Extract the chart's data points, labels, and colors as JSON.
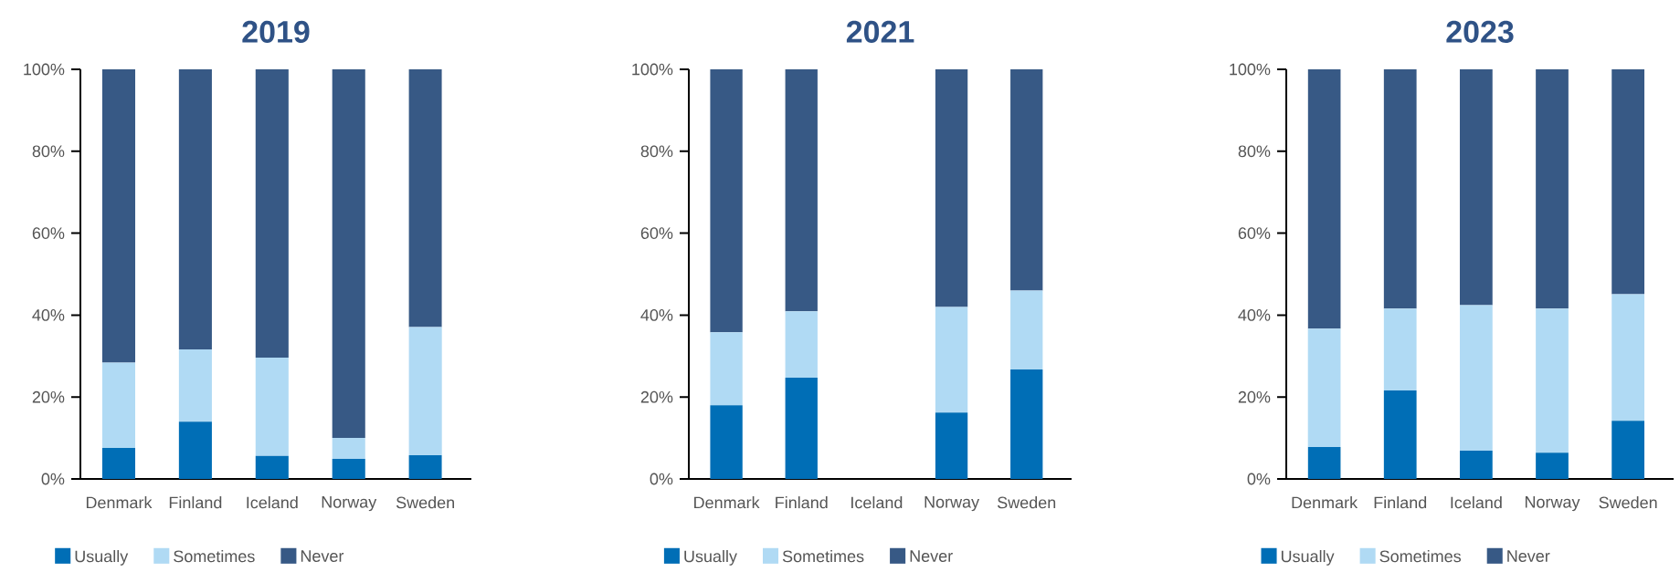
{
  "chart_data": [
    {
      "type": "bar",
      "stacked": true,
      "title": "2019",
      "categories": [
        "Denmark",
        "Finland",
        "Iceland",
        "Norway",
        "Sweden"
      ],
      "ylim": [
        0,
        100
      ],
      "yticks": [
        {
          "value": 0,
          "label": "0%"
        },
        {
          "value": 20,
          "label": "20%"
        },
        {
          "value": 40,
          "label": "40%"
        },
        {
          "value": 60,
          "label": "60%"
        },
        {
          "value": 80,
          "label": "80%"
        },
        {
          "value": 100,
          "label": "100%"
        }
      ],
      "legend": "bottom",
      "series": [
        {
          "name": "Usually",
          "color": "#006eb6",
          "values": [
            7.6,
            14.0,
            5.6,
            4.9,
            5.8
          ]
        },
        {
          "name": "Sometimes",
          "color": "#b0daf4",
          "values": [
            20.8,
            17.6,
            24.0,
            5.1,
            31.3
          ]
        },
        {
          "name": "Never",
          "color": "#375985",
          "values": [
            71.6,
            68.4,
            70.4,
            90.0,
            62.9
          ]
        }
      ]
    },
    {
      "type": "bar",
      "stacked": true,
      "title": "2021",
      "categories": [
        "Denmark",
        "Finland",
        "Iceland",
        "Norway",
        "Sweden"
      ],
      "ylim": [
        0,
        100
      ],
      "yticks": [
        {
          "value": 0,
          "label": "0%"
        },
        {
          "value": 20,
          "label": "20%"
        },
        {
          "value": 40,
          "label": "40%"
        },
        {
          "value": 60,
          "label": "60%"
        },
        {
          "value": 80,
          "label": "80%"
        },
        {
          "value": 100,
          "label": "100%"
        }
      ],
      "legend": "bottom",
      "series": [
        {
          "name": "Usually",
          "color": "#006eb6",
          "values": [
            18.0,
            24.7,
            null,
            16.2,
            26.7
          ]
        },
        {
          "name": "Sometimes",
          "color": "#b0daf4",
          "values": [
            17.8,
            16.2,
            null,
            25.8,
            19.3
          ]
        },
        {
          "name": "Never",
          "color": "#375985",
          "values": [
            64.2,
            59.1,
            null,
            58.0,
            54.0
          ]
        }
      ]
    },
    {
      "type": "bar",
      "stacked": true,
      "title": "2023",
      "categories": [
        "Denmark",
        "Finland",
        "Iceland",
        "Norway",
        "Sweden"
      ],
      "ylim": [
        0,
        100
      ],
      "yticks": [
        {
          "value": 0,
          "label": "0%"
        },
        {
          "value": 20,
          "label": "20%"
        },
        {
          "value": 40,
          "label": "40%"
        },
        {
          "value": 60,
          "label": "60%"
        },
        {
          "value": 80,
          "label": "80%"
        },
        {
          "value": 100,
          "label": "100%"
        }
      ],
      "legend": "bottom",
      "series": [
        {
          "name": "Usually",
          "color": "#006eb6",
          "values": [
            7.8,
            21.6,
            6.9,
            6.4,
            14.2
          ]
        },
        {
          "name": "Sometimes",
          "color": "#b0daf4",
          "values": [
            28.9,
            20.0,
            35.5,
            35.2,
            30.9
          ]
        },
        {
          "name": "Never",
          "color": "#375985",
          "values": [
            63.3,
            58.4,
            57.6,
            58.4,
            54.9
          ]
        }
      ]
    }
  ]
}
